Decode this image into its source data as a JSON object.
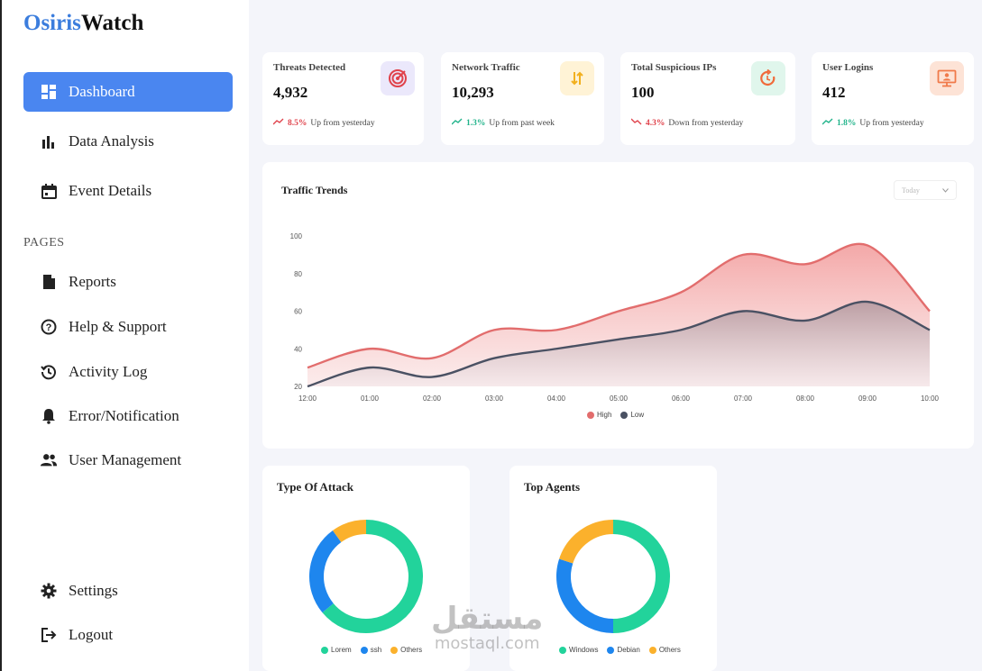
{
  "brand": {
    "part1": "Osiris",
    "part2": "Watch"
  },
  "sidebar": {
    "items": [
      {
        "label": "Dashboard"
      },
      {
        "label": "Data Analysis"
      },
      {
        "label": "Event Details"
      }
    ],
    "section_label": "PAGES",
    "pages": [
      {
        "label": "Reports"
      },
      {
        "label": "Help & Support"
      },
      {
        "label": "Activity Log"
      },
      {
        "label": "Error/Notification"
      },
      {
        "label": "User Management"
      }
    ],
    "bottom": [
      {
        "label": "Settings"
      },
      {
        "label": "Logout"
      }
    ]
  },
  "stats": [
    {
      "label": "Threats Detected",
      "value": "4,932",
      "pct": "8.5%",
      "text": "Up from yesterday",
      "direction": "down",
      "icon": "target-icon",
      "icon_bg": "#ebe8fb",
      "icon_color": "#e0424b"
    },
    {
      "label": "Network Traffic",
      "value": "10,293",
      "pct": "1.3%",
      "text": "Up from past week",
      "direction": "up",
      "icon": "traffic-icon",
      "icon_bg": "#fff3d6",
      "icon_color": "#f2b01e"
    },
    {
      "label": "Total Suspicious IPs",
      "value": "100",
      "pct": "4.3%",
      "text": "Down from yesterday",
      "direction": "down",
      "icon": "cycle-icon",
      "icon_bg": "#e0f6ec",
      "icon_color": "#f06a3a"
    },
    {
      "label": "User Logins",
      "value": "412",
      "pct": "1.8%",
      "text": "Up from yesterday",
      "direction": "up",
      "icon": "monitor-user-icon",
      "icon_bg": "#fde3d6",
      "icon_color": "#f07a4a"
    }
  ],
  "traffic": {
    "title": "Traffic Trends",
    "dropdown": "Today",
    "legend_high": "High",
    "legend_low": "Low"
  },
  "attack": {
    "title": "Type Of Attack",
    "legend": [
      "Lorem",
      "ssh",
      "Others"
    ]
  },
  "agents": {
    "title": "Top Agents",
    "legend": [
      "Windows",
      "Debian",
      "Others"
    ]
  },
  "watermark": {
    "arabic": "مستقل",
    "latin": "mostaql.com"
  },
  "chart_data": [
    {
      "type": "area",
      "title": "Traffic Trends",
      "x": [
        "12:00",
        "01:00",
        "02:00",
        "03:00",
        "04:00",
        "05:00",
        "06:00",
        "07:00",
        "08:00",
        "09:00",
        "10:00"
      ],
      "ylim": [
        20,
        100
      ],
      "yticks": [
        20,
        40,
        60,
        80,
        100
      ],
      "series": [
        {
          "name": "High",
          "color": "#e26d6d",
          "values": [
            30,
            40,
            35,
            50,
            50,
            60,
            70,
            90,
            85,
            95,
            60
          ]
        },
        {
          "name": "Low",
          "color": "#4a5163",
          "values": [
            20,
            30,
            25,
            35,
            40,
            45,
            50,
            60,
            55,
            65,
            50
          ]
        }
      ],
      "legend": "bottom"
    },
    {
      "type": "pie",
      "title": "Type Of Attack",
      "labels": [
        "Lorem",
        "ssh",
        "Others"
      ],
      "values": [
        64,
        26,
        10
      ],
      "colors": [
        "#22d39b",
        "#1e86ee",
        "#fbb12c"
      ]
    },
    {
      "type": "pie",
      "title": "Top Agents",
      "labels": [
        "Windows",
        "Debian",
        "Others"
      ],
      "values": [
        50,
        30,
        20
      ],
      "colors": [
        "#22d39b",
        "#1e86ee",
        "#fbb12c"
      ]
    }
  ]
}
